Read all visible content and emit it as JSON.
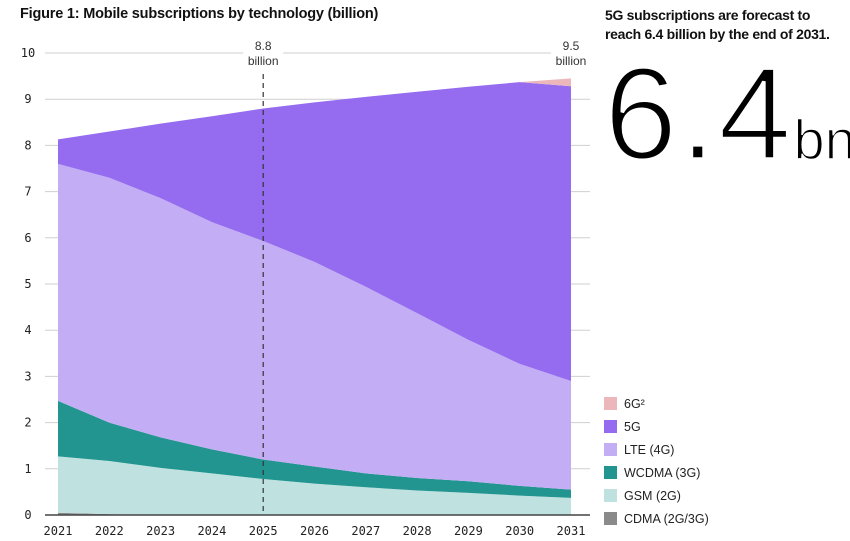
{
  "chart_data": {
    "type": "area",
    "stacked": true,
    "title": "Figure 1: Mobile subscriptions by technology (billion)",
    "xlabel": "",
    "ylabel": "",
    "categories": [
      "2021",
      "2022",
      "2023",
      "2024",
      "2025",
      "2026",
      "2027",
      "2028",
      "2029",
      "2030",
      "2031"
    ],
    "ylim": [
      0,
      10
    ],
    "yticks": [
      "0",
      "1",
      "2",
      "3",
      "4",
      "5",
      "6",
      "7",
      "8",
      "9",
      "10"
    ],
    "grid": "horizontal",
    "legend_position": "right-bottom",
    "series": [
      {
        "name": "CDMA (2G/3G)",
        "color": "#8a8a8a",
        "values": [
          0.05,
          0.02,
          0,
          0,
          0,
          0,
          0,
          0,
          0,
          0,
          0
        ]
      },
      {
        "name": "GSM (2G)",
        "color": "#bfe2e1",
        "values": [
          1.22,
          1.15,
          1.02,
          0.9,
          0.78,
          0.68,
          0.6,
          0.53,
          0.48,
          0.42,
          0.37
        ]
      },
      {
        "name": "WCDMA (3G)",
        "color": "#229590",
        "values": [
          1.2,
          0.83,
          0.66,
          0.52,
          0.42,
          0.37,
          0.3,
          0.27,
          0.25,
          0.21,
          0.18
        ]
      },
      {
        "name": "LTE (4G)",
        "color": "#c3adf4",
        "values": [
          5.13,
          5.3,
          5.18,
          4.92,
          4.73,
          4.43,
          4.04,
          3.57,
          3.06,
          2.64,
          2.35
        ]
      },
      {
        "name": "5G",
        "color": "#956cf0",
        "values": [
          0.53,
          1.0,
          1.61,
          2.29,
          2.87,
          3.45,
          4.11,
          4.79,
          5.48,
          6.1,
          6.38
        ]
      },
      {
        "name": "6G²",
        "color": "#ebb7bb",
        "values": [
          0,
          0,
          0,
          0,
          0,
          0,
          0,
          0,
          0,
          0,
          0.17
        ]
      }
    ],
    "annotations": [
      {
        "x": "2025",
        "line1": "8.8",
        "line2": "billion",
        "dashed_line": true
      },
      {
        "x": "2031",
        "line1": "9.5",
        "line2": "billion"
      }
    ]
  },
  "side": {
    "headline": "5G subscriptions are forecast to reach 6.4 billion by the end of 2031.",
    "big_number": "6.4",
    "big_unit": "bn"
  }
}
